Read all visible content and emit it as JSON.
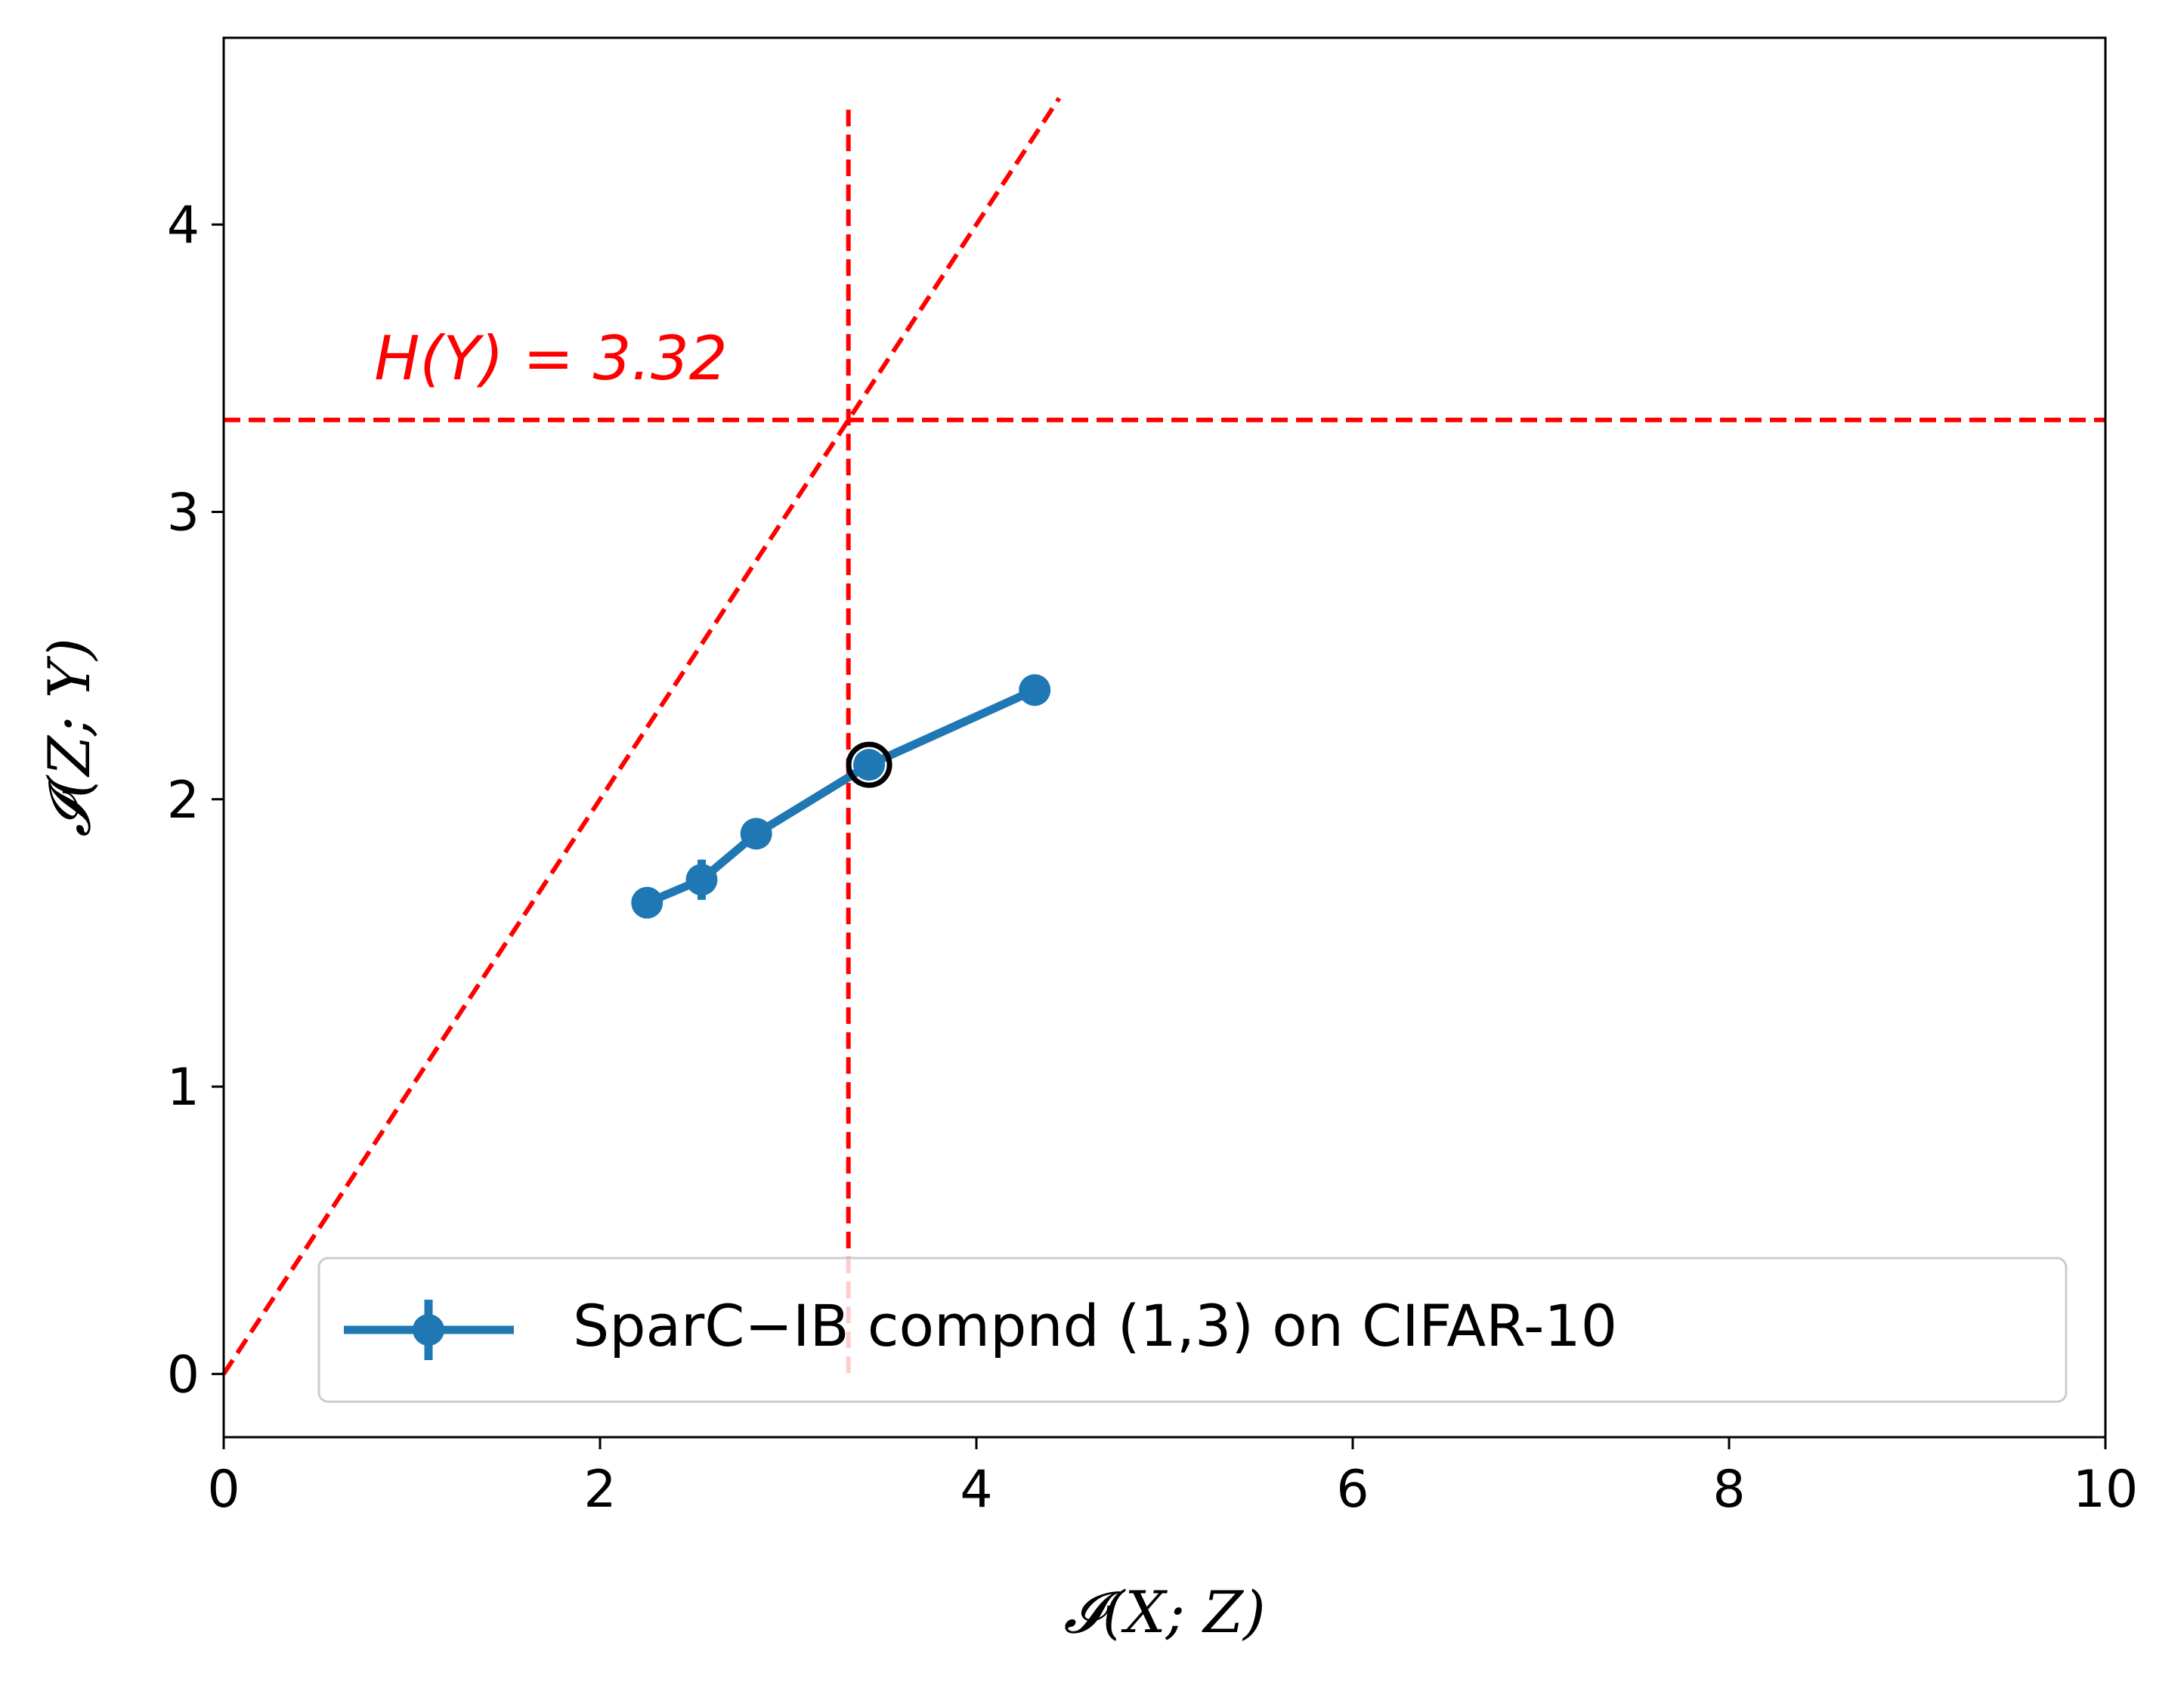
{
  "chart_data": {
    "type": "line",
    "title": "",
    "xlabel": "𝓘(X; Z)",
    "ylabel": "𝓘(Z; Y)",
    "xlim": [
      0,
      10
    ],
    "ylim": [
      -0.22,
      4.65
    ],
    "xticks": [
      0,
      2,
      4,
      6,
      8,
      10
    ],
    "yticks": [
      0,
      1,
      2,
      3,
      4
    ],
    "grid": false,
    "legend_position": "lower-right",
    "series": [
      {
        "name": "SparC−IB compnd (1,3) on CIFAR-10",
        "color": "#1f77b4",
        "points": [
          {
            "x": 2.25,
            "y": 1.64
          },
          {
            "x": 2.54,
            "y": 1.72,
            "yerr": 0.07
          },
          {
            "x": 2.83,
            "y": 1.88
          },
          {
            "x": 3.43,
            "y": 2.12
          },
          {
            "x": 4.31,
            "y": 2.38
          }
        ],
        "highlighted_point": {
          "x": 3.43,
          "y": 2.12
        }
      }
    ],
    "reference_lines": {
      "color": "#ff0000",
      "horizontal": {
        "y": 3.32,
        "label": "H(Y) = 3.32"
      },
      "vertical": {
        "x": 3.32,
        "y_range": [
          0,
          4.4
        ]
      },
      "diagonal": {
        "from": [
          0,
          0
        ],
        "to": [
          4.44,
          4.44
        ]
      }
    }
  }
}
